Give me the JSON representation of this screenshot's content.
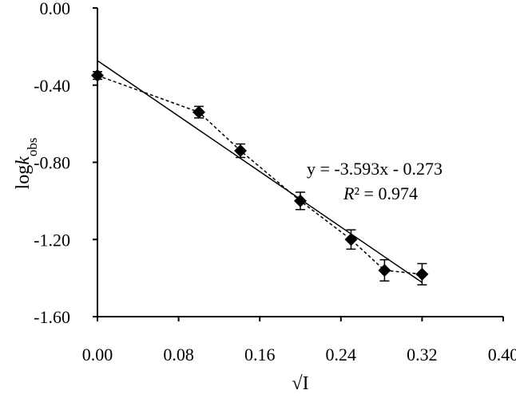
{
  "chart_data": {
    "type": "scatter",
    "xlabel": "√I",
    "ylabel_main": "log",
    "ylabel_italic": "k",
    "ylabel_sub": "obs",
    "xlim": [
      0,
      0.4
    ],
    "ylim": [
      -1.6,
      0
    ],
    "x_ticks": [
      "0.00",
      "0.08",
      "0.16",
      "0.24",
      "0.32",
      "0.40"
    ],
    "y_ticks": [
      "0.00",
      "-0.40",
      "-0.80",
      "-1.20",
      "-1.60"
    ],
    "grid": false,
    "series": [
      {
        "x": [
          0.0,
          0.1,
          0.141,
          0.2,
          0.25,
          0.283,
          0.32
        ],
        "y": [
          -0.35,
          -0.54,
          -0.74,
          -1.0,
          -1.2,
          -1.36,
          -1.38
        ],
        "error": [
          0.02,
          0.03,
          0.035,
          0.045,
          0.05,
          0.055,
          0.055
        ],
        "marker": "diamond",
        "line_style": "dashed"
      }
    ],
    "trendline": {
      "slope": -3.593,
      "intercept": -0.273,
      "x_range": [
        0,
        0.32
      ]
    },
    "annotations": {
      "equation": "y = -3.593x - 0.273",
      "r2_symbol": "R",
      "r2_text": "² = 0.974"
    }
  }
}
